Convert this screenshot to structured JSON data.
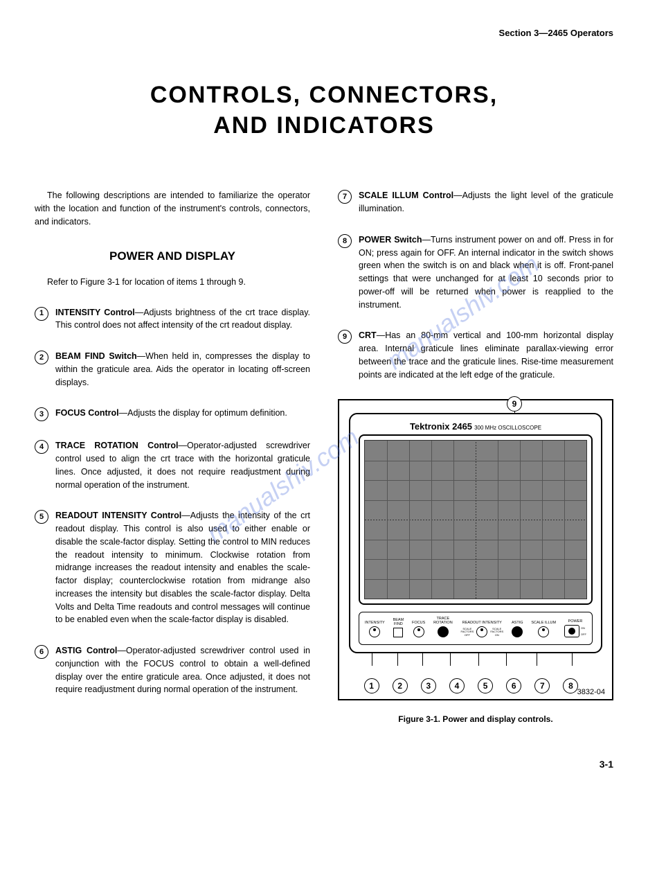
{
  "header": "Section 3—2465 Operators",
  "title_line1": "CONTROLS, CONNECTORS,",
  "title_line2": "AND INDICATORS",
  "intro": "The following descriptions are intended to familiarize the operator with the location and function of the instrument's controls, connectors, and indicators.",
  "section_title": "POWER AND DISPLAY",
  "ref_text": "Refer to Figure 3-1 for location of items 1 through 9.",
  "items": {
    "i1": {
      "label": "INTENSITY Control",
      "text": "—Adjusts brightness of the crt trace display. This control does not affect intensity of the crt readout display."
    },
    "i2": {
      "label": "BEAM FIND Switch",
      "text": "—When held in, compresses the display to within the graticule area. Aids the operator in locating off-screen displays."
    },
    "i3": {
      "label": "FOCUS Control",
      "text": "—Adjusts the display for optimum definition."
    },
    "i4": {
      "label": "TRACE ROTATION Control",
      "text": "—Operator-adjusted screwdriver control used to align the crt trace with the horizontal graticule lines. Once adjusted, it does not require readjustment during normal operation of the instrument."
    },
    "i5": {
      "label": "READOUT INTENSITY Control",
      "text": "—Adjusts the intensity of the crt readout display. This control is also used to either enable or disable the scale-factor display. Setting the control to MIN reduces the readout intensity to minimum. Clockwise rotation from midrange increases the readout intensity and enables the scale-factor display; counterclockwise rotation from midrange also increases the intensity but disables the scale-factor display. Delta Volts and Delta Time readouts and control messages will continue to be enabled even when the scale-factor display is disabled."
    },
    "i6": {
      "label": "ASTIG Control",
      "text": "—Operator-adjusted screwdriver control used in conjunction with the FOCUS control to obtain a well-defined display over the entire graticule area. Once adjusted, it does not require readjustment during normal operation of the instrument."
    },
    "i7": {
      "label": "SCALE ILLUM Control",
      "text": "—Adjusts the light level of the graticule illumination."
    },
    "i8": {
      "label": "POWER Switch",
      "text": "—Turns instrument power on and off. Press in for ON; press again for OFF. An internal indicator in the switch shows green when the switch is on and black when it is off. Front-panel settings that were unchanged for at least 10 seconds prior to power-off will be returned when power is reapplied to the instrument."
    },
    "i9": {
      "label": "CRT",
      "text": "—Has an 80-mm vertical and 100-mm horizontal display area. Internal graticule lines eliminate parallax-viewing error between the trace and the graticule lines. Rise-time measurement points are indicated at the left edge of the graticule."
    }
  },
  "figure": {
    "brand": "Tektronix 2465",
    "type": "300 MHz OSCILLOSCOPE",
    "controls": {
      "c1": "INTENSITY",
      "c2": "BEAM\nFIND",
      "c3": "FOCUS",
      "c4": "TRACE\nROTATION",
      "c5": "READOUT INTENSITY",
      "c5a": "SCALE\nFACTORS\nOFF",
      "c5b": "SCALE\nFACTORS\nON",
      "c6": "ASTIG",
      "c7": "SCALE ILLUM",
      "c8": "POWER",
      "c8on": "ON",
      "c8off": "OFF"
    },
    "id": "3832-04",
    "caption": "Figure 3-1. Power and display controls."
  },
  "page_num": "3-1",
  "watermark": "manualshiv.com"
}
